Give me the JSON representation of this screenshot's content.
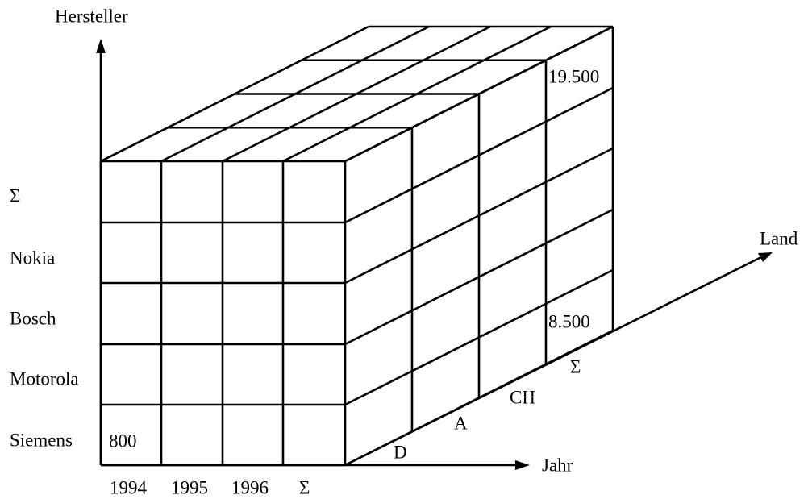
{
  "axes": {
    "y": "Hersteller",
    "x": "Jahr",
    "z": "Land"
  },
  "manufacturers": [
    "Σ",
    "Nokia",
    "Bosch",
    "Motorola",
    "Siemens"
  ],
  "years": [
    "1994",
    "1995",
    "1996",
    "Σ"
  ],
  "countries": [
    "D",
    "A",
    "CH",
    "Σ"
  ],
  "cells": {
    "front_bottom_left": "800",
    "back_top": "19.500",
    "back_bottom": "8.500"
  }
}
